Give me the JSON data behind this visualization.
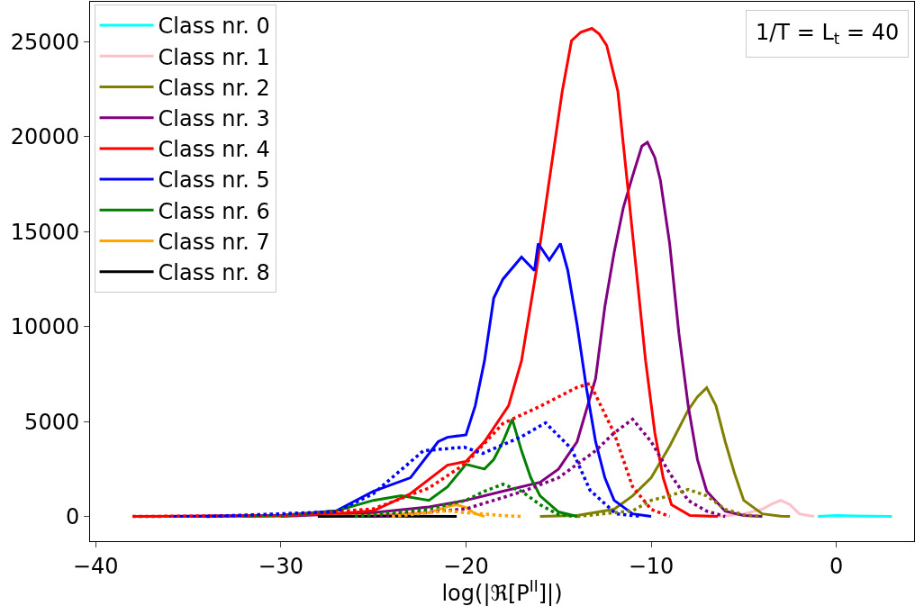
{
  "chart_data": {
    "type": "line",
    "xlabel": "log(|ℜ[P$^{II}$]|)",
    "annotations": [
      "1/T = L$_{t}$ = 40"
    ],
    "xlim": [
      -40.3,
      4.2
    ],
    "ylim": [
      -1300,
      27100
    ],
    "xticks": [
      -40,
      -30,
      -20,
      -10,
      0
    ],
    "yticks": [
      0,
      5000,
      10000,
      15000,
      20000,
      25000
    ],
    "legend": "top left",
    "marker": "none",
    "series": [
      {
        "name": "Class nr. 0",
        "color": "#00ffff",
        "line_style": "solid",
        "x": [
          -1,
          0,
          1,
          2,
          3
        ],
        "values": [
          0,
          50,
          30,
          20,
          0
        ]
      },
      {
        "name": "Class nr. 1",
        "color": "#ffc0cb",
        "line_style": "solid",
        "x": [
          -7,
          -6,
          -5,
          -4,
          -3.5,
          -3,
          -2.5,
          -2,
          -1.5,
          -1.2
        ],
        "values": [
          0,
          30,
          140,
          380,
          650,
          850,
          620,
          140,
          50,
          0
        ]
      },
      {
        "name": "Class nr. 2",
        "color": "#808000",
        "line_style": "solid",
        "x": [
          -16,
          -14,
          -12,
          -11,
          -10,
          -9,
          -8,
          -7.5,
          -7,
          -6.5,
          -6,
          -5.5,
          -5,
          -4,
          -3,
          -2.5
        ],
        "values": [
          0,
          50,
          380,
          1090,
          2040,
          3700,
          5600,
          6300,
          6780,
          5830,
          3940,
          2280,
          850,
          140,
          20,
          0
        ]
      },
      {
        "name": "Class nr. 3",
        "color": "#800080",
        "line_style": "solid",
        "x": [
          -30,
          -25,
          -22,
          -20,
          -18,
          -16,
          -15,
          -14,
          -13,
          -12.5,
          -12,
          -11.5,
          -11,
          -10.5,
          -10.2,
          -9.8,
          -9.5,
          -9,
          -8.5,
          -8,
          -7.5,
          -7,
          -6,
          -5,
          -4
        ],
        "values": [
          0,
          200,
          500,
          850,
          1330,
          1800,
          2500,
          3940,
          7260,
          11050,
          13900,
          16270,
          17930,
          19500,
          19700,
          18900,
          17700,
          14370,
          9630,
          5830,
          3000,
          1330,
          280,
          50,
          0
        ]
      },
      {
        "name": "Class nr. 4",
        "color": "#ff0000",
        "line_style": "solid",
        "x": [
          -38,
          -34,
          -30,
          -27,
          -25,
          -23,
          -21,
          -20,
          -19,
          -17.7,
          -17,
          -16.2,
          -15.5,
          -14.8,
          -14.3,
          -13.8,
          -13.2,
          -12.8,
          -12.4,
          -11.8,
          -11.3,
          -10.8,
          -10.3,
          -9.8,
          -9.35,
          -8.9,
          -7.9,
          -6.4
        ],
        "values": [
          0,
          10,
          50,
          150,
          300,
          1200,
          2700,
          2900,
          3940,
          5830,
          8200,
          12950,
          17700,
          22400,
          25050,
          25500,
          25700,
          25400,
          24800,
          22400,
          17700,
          12950,
          8200,
          4400,
          2040,
          620,
          50,
          0
        ]
      },
      {
        "name": "Class nr. 5",
        "color": "#0000ff",
        "line_style": "solid",
        "x": [
          -36,
          -30,
          -27,
          -25,
          -23,
          -21.5,
          -21,
          -20,
          -19.5,
          -19,
          -18.5,
          -18,
          -17,
          -16.3,
          -16.1,
          -15.5,
          -14.9,
          -14.5,
          -14,
          -13.5,
          -13,
          -12.5,
          -12,
          -11,
          -10
        ],
        "values": [
          0,
          50,
          300,
          1330,
          2040,
          3940,
          4170,
          4300,
          5830,
          8200,
          11500,
          12500,
          13660,
          12950,
          14370,
          13500,
          14370,
          12950,
          10100,
          6800,
          3940,
          2040,
          850,
          140,
          0
        ]
      },
      {
        "name": "Class nr. 6",
        "color": "#008000",
        "line_style": "solid",
        "x": [
          -32,
          -30,
          -27,
          -25,
          -23.5,
          -22,
          -21,
          -20,
          -19,
          -18.5,
          -18,
          -17.5,
          -17,
          -16.5,
          -16,
          -15,
          -14
        ],
        "values": [
          0,
          30,
          300,
          850,
          1090,
          850,
          1560,
          2750,
          2500,
          3000,
          3940,
          5120,
          3460,
          2040,
          1090,
          240,
          0
        ]
      },
      {
        "name": "Class nr. 7",
        "color": "#ffa500",
        "line_style": "solid",
        "x": [
          -28,
          -25,
          -22,
          -21,
          -20.5,
          -20,
          -19.5,
          -19
        ],
        "values": [
          0,
          50,
          200,
          520,
          620,
          470,
          150,
          0
        ]
      },
      {
        "name": "Class nr. 8",
        "color": "#000000",
        "line_style": "solid",
        "x": [
          -28,
          -24,
          -20.5
        ],
        "values": [
          0,
          20,
          0
        ]
      },
      {
        "color": "#ff0000",
        "line_style": "dotted",
        "x": [
          -38,
          -30,
          -25,
          -22,
          -20,
          -18,
          -16,
          -14,
          -13.3,
          -12,
          -11,
          -10,
          -9
        ],
        "values": [
          0,
          50,
          400,
          1500,
          2800,
          4900,
          5800,
          6800,
          7000,
          4400,
          1560,
          380,
          0
        ]
      },
      {
        "color": "#0000ff",
        "line_style": "dotted",
        "x": [
          -34,
          -27,
          -25,
          -22.3,
          -20.1,
          -19.1,
          -17,
          -15.7,
          -14.3,
          -13.3,
          -11.9,
          -10.5
        ],
        "values": [
          0,
          250,
          1200,
          3460,
          3650,
          3320,
          4200,
          4930,
          3560,
          1380,
          140,
          0
        ]
      },
      {
        "color": "#800080",
        "line_style": "dotted",
        "x": [
          -25,
          -20,
          -17,
          -15,
          -13,
          -12,
          -11,
          -10,
          -9,
          -8,
          -7,
          -6
        ],
        "values": [
          0,
          400,
          1300,
          2040,
          3460,
          4400,
          5120,
          3940,
          2280,
          850,
          280,
          0
        ]
      },
      {
        "color": "#808000",
        "line_style": "dotted",
        "x": [
          -14,
          -11,
          -10,
          -9,
          -8,
          -7,
          -6,
          -5,
          -4
        ],
        "values": [
          0,
          300,
          850,
          1090,
          1420,
          1090,
          380,
          80,
          0
        ]
      },
      {
        "color": "#008000",
        "line_style": "dotted",
        "x": [
          -26,
          -22,
          -20,
          -19,
          -18,
          -17,
          -16,
          -15,
          -14
        ],
        "values": [
          0,
          400,
          850,
          1330,
          1700,
          1330,
          620,
          100,
          0
        ]
      },
      {
        "color": "#ffa500",
        "line_style": "dotted",
        "x": [
          -24,
          -21,
          -20,
          -18,
          -17
        ],
        "values": [
          0,
          300,
          200,
          50,
          0
        ]
      }
    ]
  }
}
